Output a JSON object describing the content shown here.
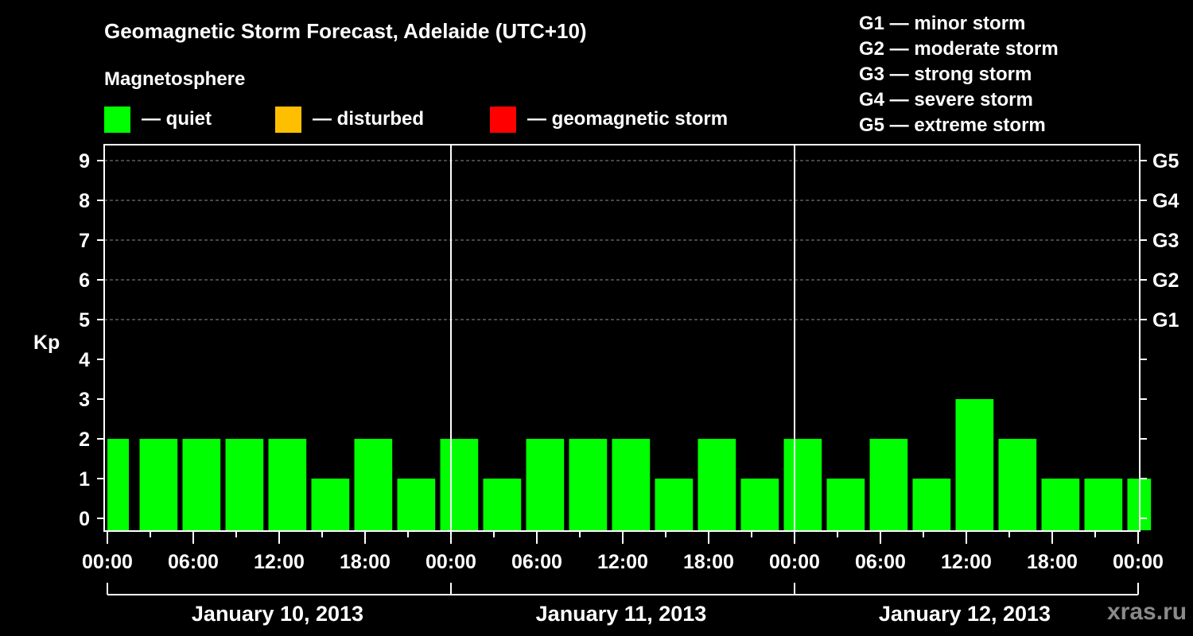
{
  "header": {
    "title": "Geomagnetic Storm Forecast, Adelaide (UTC+10)",
    "subtitle": "Magnetosphere"
  },
  "legend": [
    {
      "label": "— quiet",
      "color": "#00ff00"
    },
    {
      "label": "— disturbed",
      "color": "#ffbf00"
    },
    {
      "label": "— geomagnetic storm",
      "color": "#ff0000"
    }
  ],
  "g_scale_legend": [
    "G1 — minor storm",
    "G2 — moderate storm",
    "G3 — strong storm",
    "G4 — severe storm",
    "G5 — extreme storm"
  ],
  "watermark": "xras.ru",
  "chart_data": {
    "type": "bar",
    "title": "Geomagnetic Storm Forecast, Adelaide (UTC+10)",
    "subtitle": "Magnetosphere",
    "xlabel": "",
    "ylabel": "Kp",
    "ylim": [
      0,
      9
    ],
    "yticks": [
      0,
      1,
      2,
      3,
      4,
      5,
      6,
      7,
      8,
      9
    ],
    "right_axis_labels": [
      {
        "kp": 5,
        "label": "G1"
      },
      {
        "kp": 6,
        "label": "G2"
      },
      {
        "kp": 7,
        "label": "G3"
      },
      {
        "kp": 8,
        "label": "G4"
      },
      {
        "kp": 9,
        "label": "G5"
      }
    ],
    "grid": {
      "horizontal_dashed_at": [
        5,
        6,
        7,
        8,
        9
      ]
    },
    "x_tick_labels": [
      "00:00",
      "06:00",
      "12:00",
      "18:00",
      "00:00",
      "06:00",
      "12:00",
      "18:00",
      "00:00",
      "06:00",
      "12:00",
      "18:00",
      "00:00"
    ],
    "date_labels": [
      "January 10, 2013",
      "January 11, 2013",
      "January 12, 2013"
    ],
    "bar_interval_hours": 3,
    "series": [
      {
        "name": "Kp index",
        "color": "#00ff00",
        "bars": [
          {
            "start_h": 0.0,
            "end_h": 1.5,
            "kp": 2
          },
          {
            "start_h": 2.25,
            "end_h": 4.9,
            "kp": 2
          },
          {
            "start_h": 5.25,
            "end_h": 7.9,
            "kp": 2
          },
          {
            "start_h": 8.25,
            "end_h": 10.9,
            "kp": 2
          },
          {
            "start_h": 11.25,
            "end_h": 13.9,
            "kp": 2
          },
          {
            "start_h": 14.25,
            "end_h": 16.9,
            "kp": 1
          },
          {
            "start_h": 17.25,
            "end_h": 19.9,
            "kp": 2
          },
          {
            "start_h": 20.25,
            "end_h": 22.9,
            "kp": 1
          },
          {
            "start_h": 23.25,
            "end_h": 25.9,
            "kp": 2
          },
          {
            "start_h": 26.25,
            "end_h": 28.9,
            "kp": 1
          },
          {
            "start_h": 29.25,
            "end_h": 31.9,
            "kp": 2
          },
          {
            "start_h": 32.25,
            "end_h": 34.9,
            "kp": 2
          },
          {
            "start_h": 35.25,
            "end_h": 37.9,
            "kp": 2
          },
          {
            "start_h": 38.25,
            "end_h": 40.9,
            "kp": 1
          },
          {
            "start_h": 41.25,
            "end_h": 43.9,
            "kp": 2
          },
          {
            "start_h": 44.25,
            "end_h": 46.9,
            "kp": 1
          },
          {
            "start_h": 47.25,
            "end_h": 49.9,
            "kp": 2
          },
          {
            "start_h": 50.25,
            "end_h": 52.9,
            "kp": 1
          },
          {
            "start_h": 53.25,
            "end_h": 55.9,
            "kp": 2
          },
          {
            "start_h": 56.25,
            "end_h": 58.9,
            "kp": 1
          },
          {
            "start_h": 59.25,
            "end_h": 61.9,
            "kp": 3
          },
          {
            "start_h": 62.25,
            "end_h": 64.9,
            "kp": 2
          },
          {
            "start_h": 65.25,
            "end_h": 67.9,
            "kp": 1
          },
          {
            "start_h": 68.25,
            "end_h": 70.9,
            "kp": 1
          },
          {
            "start_h": 71.25,
            "end_h": 72.9,
            "kp": 1
          }
        ]
      }
    ],
    "values": [
      2,
      2,
      2,
      2,
      2,
      1,
      2,
      1,
      2,
      1,
      2,
      2,
      2,
      1,
      2,
      1,
      2,
      1,
      2,
      1,
      3,
      2,
      1,
      1,
      1
    ],
    "legend_position": "top"
  }
}
